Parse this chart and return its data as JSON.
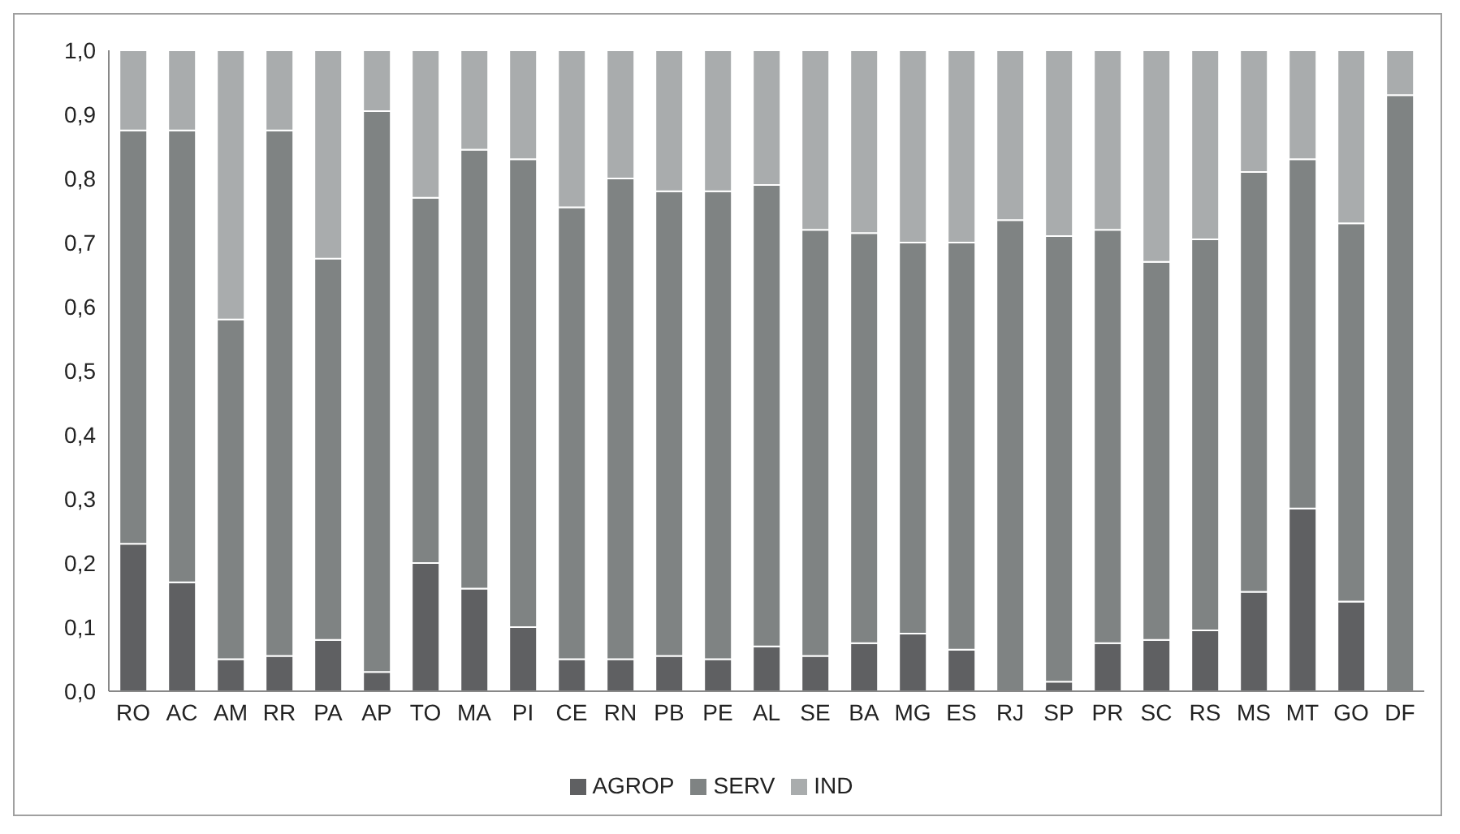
{
  "chart_data": {
    "type": "bar",
    "stacked": true,
    "categories": [
      "RO",
      "AC",
      "AM",
      "RR",
      "PA",
      "AP",
      "TO",
      "MA",
      "PI",
      "CE",
      "RN",
      "PB",
      "PE",
      "AL",
      "SE",
      "BA",
      "MG",
      "ES",
      "RJ",
      "SP",
      "PR",
      "SC",
      "RS",
      "MS",
      "MT",
      "GO",
      "DF"
    ],
    "series": [
      {
        "name": "AGROP",
        "color": "#5f6062",
        "values": [
          0.23,
          0.17,
          0.05,
          0.055,
          0.08,
          0.03,
          0.2,
          0.16,
          0.1,
          0.05,
          0.05,
          0.055,
          0.05,
          0.07,
          0.055,
          0.075,
          0.09,
          0.065,
          0,
          0.015,
          0.075,
          0.08,
          0.095,
          0.155,
          0.285,
          0.14,
          0
        ]
      },
      {
        "name": "SERV",
        "color": "#7f8383",
        "values": [
          0.645,
          0.705,
          0.53,
          0.82,
          0.595,
          0.875,
          0.57,
          0.685,
          0.73,
          0.705,
          0.75,
          0.725,
          0.73,
          0.72,
          0.665,
          0.64,
          0.61,
          0.635,
          0.735,
          0.695,
          0.645,
          0.59,
          0.61,
          0.655,
          0.545,
          0.59,
          0.93
        ]
      },
      {
        "name": "IND",
        "color": "#a9acad",
        "values": [
          0.125,
          0.125,
          0.42,
          0.125,
          0.325,
          0.095,
          0.23,
          0.155,
          0.17,
          0.245,
          0.2,
          0.22,
          0.22,
          0.21,
          0.28,
          0.285,
          0.3,
          0.3,
          0.265,
          0.29,
          0.28,
          0.33,
          0.295,
          0.19,
          0.17,
          0.27,
          0.07
        ]
      }
    ],
    "ylim": [
      0,
      1
    ],
    "yticks": [
      {
        "value": 0,
        "label": "0,0"
      },
      {
        "value": 0.1,
        "label": "0,1"
      },
      {
        "value": 0.2,
        "label": "0,2"
      },
      {
        "value": 0.3,
        "label": "0,3"
      },
      {
        "value": 0.4,
        "label": "0,4"
      },
      {
        "value": 0.5,
        "label": "0,5"
      },
      {
        "value": 0.6,
        "label": "0,6"
      },
      {
        "value": 0.7,
        "label": "0,7"
      },
      {
        "value": 0.8,
        "label": "0,8"
      },
      {
        "value": 0.9,
        "label": "0,9"
      },
      {
        "value": 1,
        "label": "1,0"
      }
    ],
    "grid": false,
    "legend": "bottom"
  }
}
